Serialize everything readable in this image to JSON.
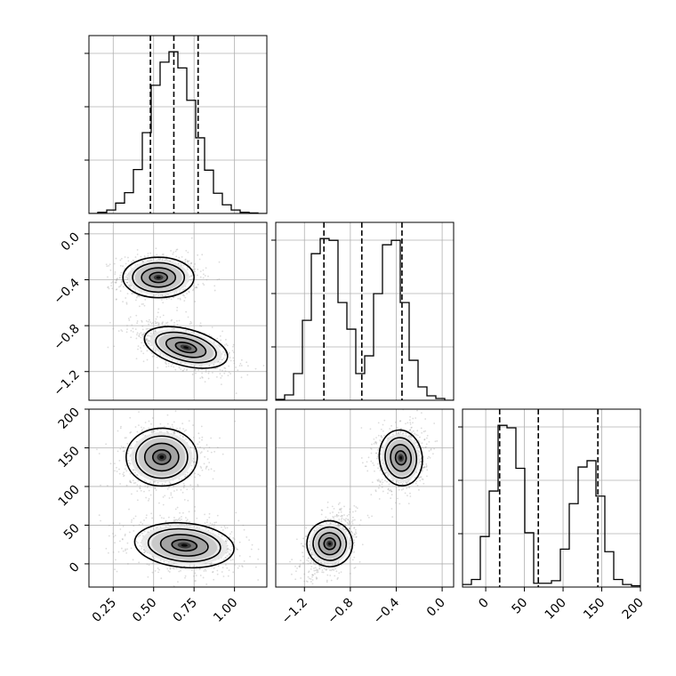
{
  "chart_data": {
    "type": "corner",
    "parameters": [
      {
        "id": "p0",
        "ticks": [
          0.25,
          0.5,
          0.75,
          1.0
        ],
        "tick_labels": [
          "0.25",
          "0.50",
          "0.75",
          "1.00"
        ],
        "range": [
          0.1,
          1.2
        ]
      },
      {
        "id": "p1",
        "ticks": [
          -1.2,
          -0.8,
          -0.4,
          0.0
        ],
        "tick_labels": [
          "−1.2",
          "−0.8",
          "−0.4",
          "0.0"
        ],
        "range": [
          -1.45,
          0.1
        ]
      },
      {
        "id": "p2",
        "ticks": [
          0,
          50,
          100,
          150,
          200
        ],
        "tick_labels": [
          "0",
          "50",
          "100",
          "150",
          "200"
        ],
        "range": [
          -30,
          200
        ]
      }
    ],
    "histograms": [
      {
        "param": "p0",
        "bin_edges_range": [
          0.1,
          1.2
        ],
        "bins": 20,
        "counts": [
          0,
          2,
          6,
          18,
          36,
          76,
          140,
          222,
          262,
          280,
          252,
          196,
          131,
          75,
          35,
          15,
          6,
          2,
          1,
          0
        ],
        "quantiles": [
          0.48,
          0.625,
          0.775
        ]
      },
      {
        "param": "p1",
        "bin_edges_range": [
          -1.45,
          0.1
        ],
        "bins": 20,
        "counts": [
          1,
          6,
          30,
          90,
          165,
          182,
          180,
          110,
          80,
          30,
          50,
          120,
          175,
          180,
          110,
          45,
          15,
          5,
          2,
          0
        ],
        "quantiles": [
          -1.03,
          -0.7,
          -0.35
        ]
      },
      {
        "param": "p2",
        "bin_edges_range": [
          -30,
          200
        ],
        "bins": 20,
        "counts": [
          2,
          6,
          40,
          76,
          128,
          126,
          94,
          43,
          3,
          3,
          5,
          30,
          66,
          95,
          100,
          72,
          28,
          6,
          2,
          1
        ],
        "quantiles": [
          18,
          68,
          145
        ]
      }
    ],
    "joint": [
      {
        "x": "p0",
        "y": "p1",
        "modes": [
          {
            "cx": 0.53,
            "cy": -0.38,
            "sx": 0.1,
            "sy": 0.08,
            "rho": 0.0
          },
          {
            "cx": 0.7,
            "cy": -0.99,
            "sx": 0.12,
            "sy": 0.09,
            "rho": -0.55
          }
        ]
      },
      {
        "x": "p0",
        "y": "p2",
        "modes": [
          {
            "cx": 0.55,
            "cy": 138,
            "sx": 0.1,
            "sy": 17,
            "rho": 0.0
          },
          {
            "cx": 0.69,
            "cy": 24,
            "sx": 0.14,
            "sy": 14,
            "rho": -0.2
          }
        ]
      },
      {
        "x": "p1",
        "y": "p2",
        "modes": [
          {
            "cx": -0.98,
            "cy": 26,
            "sx": 0.09,
            "sy": 16,
            "rho": 0.45
          },
          {
            "cx": -0.36,
            "cy": 137,
            "sx": 0.085,
            "sy": 17,
            "rho": 0.1
          }
        ]
      }
    ],
    "grid": true,
    "quantile_line_style": "dashed"
  }
}
